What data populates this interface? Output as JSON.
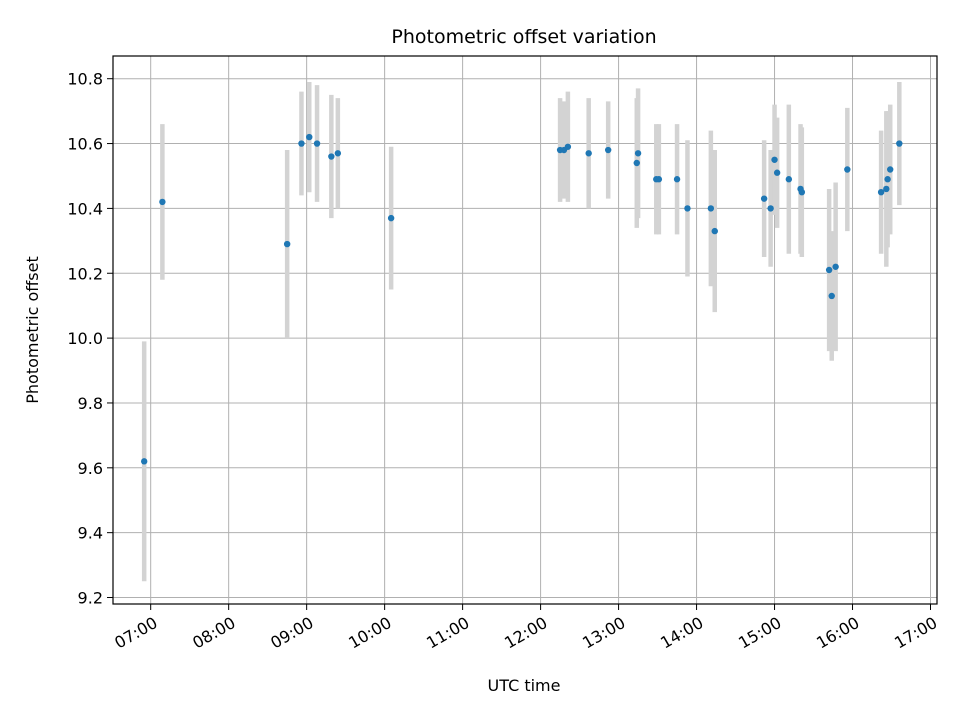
{
  "chart_data": {
    "type": "scatter",
    "title": "Photometric offset variation",
    "xlabel": "UTC time",
    "ylabel": "Photometric offset",
    "x_tick_labels": [
      "07:00",
      "08:00",
      "09:00",
      "10:00",
      "11:00",
      "12:00",
      "13:00",
      "14:00",
      "15:00",
      "16:00",
      "17:00"
    ],
    "y_tick_labels": [
      "9.2",
      "9.4",
      "9.6",
      "9.8",
      "10.0",
      "10.2",
      "10.4",
      "10.6",
      "10.8"
    ],
    "xlim": [
      "06:31",
      "17:05"
    ],
    "ylim": [
      9.18,
      10.87
    ],
    "grid": true,
    "colors": {
      "marker": "#1f77b4",
      "errorbar": "#d3d3d3",
      "grid": "#b0b0b0"
    },
    "series": [
      {
        "points": [
          {
            "t": "06:55",
            "y": 9.62,
            "err": 0.37
          },
          {
            "t": "07:09",
            "y": 10.42,
            "err": 0.24
          },
          {
            "t": "08:45",
            "y": 10.29,
            "err": 0.29
          },
          {
            "t": "08:56",
            "y": 10.6,
            "err": 0.16
          },
          {
            "t": "09:02",
            "y": 10.62,
            "err": 0.17
          },
          {
            "t": "09:08",
            "y": 10.6,
            "err": 0.18
          },
          {
            "t": "09:19",
            "y": 10.56,
            "err": 0.19
          },
          {
            "t": "09:24",
            "y": 10.57,
            "err": 0.17
          },
          {
            "t": "10:05",
            "y": 10.37,
            "err": 0.22
          },
          {
            "t": "12:15",
            "y": 10.58,
            "err": 0.16
          },
          {
            "t": "12:18",
            "y": 10.58,
            "err": 0.15
          },
          {
            "t": "12:21",
            "y": 10.59,
            "err": 0.17
          },
          {
            "t": "12:37",
            "y": 10.57,
            "err": 0.17
          },
          {
            "t": "12:52",
            "y": 10.58,
            "err": 0.15
          },
          {
            "t": "13:14",
            "y": 10.54,
            "err": 0.2
          },
          {
            "t": "13:15",
            "y": 10.57,
            "err": 0.2
          },
          {
            "t": "13:29",
            "y": 10.49,
            "err": 0.17
          },
          {
            "t": "13:31",
            "y": 10.49,
            "err": 0.17
          },
          {
            "t": "13:45",
            "y": 10.49,
            "err": 0.17
          },
          {
            "t": "13:53",
            "y": 10.4,
            "err": 0.21
          },
          {
            "t": "14:11",
            "y": 10.4,
            "err": 0.24
          },
          {
            "t": "14:14",
            "y": 10.33,
            "err": 0.25
          },
          {
            "t": "14:52",
            "y": 10.43,
            "err": 0.18
          },
          {
            "t": "14:57",
            "y": 10.4,
            "err": 0.18
          },
          {
            "t": "15:00",
            "y": 10.55,
            "err": 0.17
          },
          {
            "t": "15:02",
            "y": 10.51,
            "err": 0.17
          },
          {
            "t": "15:11",
            "y": 10.49,
            "err": 0.23
          },
          {
            "t": "15:20",
            "y": 10.46,
            "err": 0.2
          },
          {
            "t": "15:21",
            "y": 10.45,
            "err": 0.2
          },
          {
            "t": "15:42",
            "y": 10.21,
            "err": 0.25
          },
          {
            "t": "15:44",
            "y": 10.13,
            "err": 0.2
          },
          {
            "t": "15:47",
            "y": 10.22,
            "err": 0.26
          },
          {
            "t": "15:56",
            "y": 10.52,
            "err": 0.19
          },
          {
            "t": "16:22",
            "y": 10.45,
            "err": 0.19
          },
          {
            "t": "16:26",
            "y": 10.46,
            "err": 0.24
          },
          {
            "t": "16:27",
            "y": 10.49,
            "err": 0.21
          },
          {
            "t": "16:29",
            "y": 10.52,
            "err": 0.2
          },
          {
            "t": "16:36",
            "y": 10.6,
            "err": 0.19
          }
        ]
      }
    ]
  }
}
